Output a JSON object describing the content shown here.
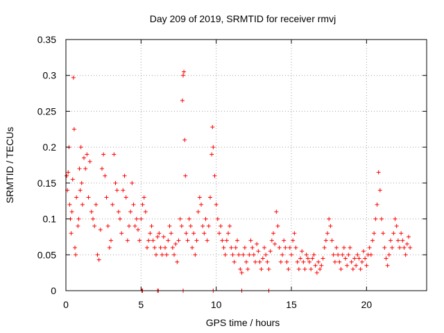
{
  "chart_data": {
    "type": "scatter",
    "title": "Day 209 of 2019, SRMTID for receiver rmvj",
    "xlabel": "GPS time / hours",
    "ylabel": "SRMTID / TECUs",
    "xlim": [
      0,
      24
    ],
    "ylim": [
      0,
      0.35
    ],
    "xticks": [
      0,
      5,
      10,
      15,
      20
    ],
    "yticks": [
      0,
      0.05,
      0.1,
      0.15,
      0.2,
      0.25,
      0.3,
      0.35
    ],
    "xtick_labels": [
      "0",
      "5",
      "10",
      "15",
      "20"
    ],
    "ytick_labels": [
      "0",
      "0.05",
      "0.1",
      "0.15",
      "0.2",
      "0.25",
      "0.3",
      "0.35"
    ],
    "grid": true,
    "marker": "+",
    "color": "#ff0000",
    "series": [
      {
        "name": "SRMTID",
        "points": [
          [
            0.05,
            0.16
          ],
          [
            0.1,
            0.14
          ],
          [
            0.15,
            0.165
          ],
          [
            0.2,
            0.2
          ],
          [
            0.25,
            0.12
          ],
          [
            0.3,
            0.1
          ],
          [
            0.35,
            0.08
          ],
          [
            0.4,
            0.11
          ],
          [
            0.45,
            0.155
          ],
          [
            0.5,
            0.297
          ],
          [
            0.55,
            0.225
          ],
          [
            0.6,
            0.06
          ],
          [
            0.65,
            0.05
          ],
          [
            0.7,
            0.13
          ],
          [
            0.8,
            0.09
          ],
          [
            0.85,
            0.1
          ],
          [
            0.9,
            0.17
          ],
          [
            0.95,
            0.14
          ],
          [
            1.0,
            0.2
          ],
          [
            1.05,
            0.15
          ],
          [
            1.1,
            0.12
          ],
          [
            1.2,
            0.185
          ],
          [
            1.3,
            0.17
          ],
          [
            1.4,
            0.19
          ],
          [
            1.5,
            0.13
          ],
          [
            1.6,
            0.18
          ],
          [
            1.7,
            0.11
          ],
          [
            1.8,
            0.1
          ],
          [
            1.9,
            0.09
          ],
          [
            2.0,
            0.12
          ],
          [
            2.1,
            0.05
          ],
          [
            2.2,
            0.043
          ],
          [
            2.3,
            0.085
          ],
          [
            2.4,
            0.17
          ],
          [
            2.5,
            0.19
          ],
          [
            2.6,
            0.16
          ],
          [
            2.7,
            0.13
          ],
          [
            2.8,
            0.09
          ],
          [
            2.9,
            0.06
          ],
          [
            3.0,
            0.07
          ],
          [
            3.1,
            0.12
          ],
          [
            3.2,
            0.19
          ],
          [
            3.3,
            0.15
          ],
          [
            3.4,
            0.14
          ],
          [
            3.5,
            0.11
          ],
          [
            3.6,
            0.1
          ],
          [
            3.7,
            0.08
          ],
          [
            3.8,
            0.14
          ],
          [
            3.9,
            0.16
          ],
          [
            4.0,
            0.13
          ],
          [
            4.1,
            0.07
          ],
          [
            4.2,
            0.09
          ],
          [
            4.3,
            0.11
          ],
          [
            4.4,
            0.15
          ],
          [
            4.5,
            0.12
          ],
          [
            4.6,
            0.09
          ],
          [
            4.7,
            0.1
          ],
          [
            4.8,
            0.085
          ],
          [
            4.9,
            0.07
          ],
          [
            5.0,
            0.1
          ],
          [
            5.1,
            0.12
          ],
          [
            5.2,
            0.13
          ],
          [
            5.3,
            0.11
          ],
          [
            5.4,
            0.06
          ],
          [
            5.5,
            0.07
          ],
          [
            5.6,
            0.08
          ],
          [
            5.7,
            0.09
          ],
          [
            5.8,
            0.07
          ],
          [
            5.9,
            0.06
          ],
          [
            6.0,
            0.05
          ],
          [
            6.1,
            0.075
          ],
          [
            6.2,
            0.08
          ],
          [
            6.3,
            0.06
          ],
          [
            6.4,
            0.05
          ],
          [
            6.5,
            0.075
          ],
          [
            6.6,
            0.06
          ],
          [
            6.7,
            0.05
          ],
          [
            6.8,
            0.07
          ],
          [
            6.9,
            0.09
          ],
          [
            7.0,
            0.08
          ],
          [
            7.1,
            0.06
          ],
          [
            7.2,
            0.05
          ],
          [
            7.3,
            0.065
          ],
          [
            7.4,
            0.04
          ],
          [
            7.5,
            0.07
          ],
          [
            7.6,
            0.1
          ],
          [
            7.7,
            0.09
          ],
          [
            7.75,
            0.265
          ],
          [
            7.8,
            0.3
          ],
          [
            7.85,
            0.305
          ],
          [
            7.9,
            0.21
          ],
          [
            7.95,
            0.16
          ],
          [
            8.0,
            0.08
          ],
          [
            8.1,
            0.07
          ],
          [
            8.2,
            0.1
          ],
          [
            8.3,
            0.09
          ],
          [
            8.4,
            0.06
          ],
          [
            8.5,
            0.08
          ],
          [
            8.6,
            0.05
          ],
          [
            8.7,
            0.07
          ],
          [
            8.8,
            0.11
          ],
          [
            8.9,
            0.13
          ],
          [
            9.0,
            0.12
          ],
          [
            9.1,
            0.09
          ],
          [
            9.2,
            0.08
          ],
          [
            9.3,
            0.1
          ],
          [
            9.4,
            0.07
          ],
          [
            9.5,
            0.09
          ],
          [
            9.6,
            0.13
          ],
          [
            9.7,
            0.19
          ],
          [
            9.75,
            0.228
          ],
          [
            9.8,
            0.2
          ],
          [
            9.9,
            0.16
          ],
          [
            10.0,
            0.12
          ],
          [
            10.1,
            0.1
          ],
          [
            10.2,
            0.08
          ],
          [
            10.3,
            0.09
          ],
          [
            10.4,
            0.07
          ],
          [
            10.5,
            0.06
          ],
          [
            10.6,
            0.05
          ],
          [
            10.7,
            0.07
          ],
          [
            10.8,
            0.08
          ],
          [
            10.9,
            0.09
          ],
          [
            11.0,
            0.06
          ],
          [
            11.1,
            0.05
          ],
          [
            11.2,
            0.04
          ],
          [
            11.3,
            0.06
          ],
          [
            11.4,
            0.07
          ],
          [
            11.5,
            0.05
          ],
          [
            11.6,
            0.03
          ],
          [
            11.7,
            0.025
          ],
          [
            11.8,
            0.05
          ],
          [
            11.9,
            0.06
          ],
          [
            12.0,
            0.04
          ],
          [
            12.1,
            0.03
          ],
          [
            12.2,
            0.05
          ],
          [
            12.3,
            0.07
          ],
          [
            12.4,
            0.06
          ],
          [
            12.5,
            0.05
          ],
          [
            12.6,
            0.04
          ],
          [
            12.7,
            0.065
          ],
          [
            12.8,
            0.055
          ],
          [
            12.9,
            0.04
          ],
          [
            13.0,
            0.03
          ],
          [
            13.1,
            0.045
          ],
          [
            13.2,
            0.06
          ],
          [
            13.3,
            0.05
          ],
          [
            13.4,
            0.04
          ],
          [
            13.5,
            0.03
          ],
          [
            13.6,
            0.055
          ],
          [
            13.7,
            0.07
          ],
          [
            13.8,
            0.08
          ],
          [
            13.9,
            0.065
          ],
          [
            14.0,
            0.11
          ],
          [
            14.1,
            0.09
          ],
          [
            14.2,
            0.06
          ],
          [
            14.3,
            0.04
          ],
          [
            14.4,
            0.05
          ],
          [
            14.5,
            0.07
          ],
          [
            14.6,
            0.06
          ],
          [
            14.7,
            0.04
          ],
          [
            14.8,
            0.03
          ],
          [
            14.9,
            0.06
          ],
          [
            15.0,
            0.05
          ],
          [
            15.1,
            0.07
          ],
          [
            15.2,
            0.08
          ],
          [
            15.3,
            0.06
          ],
          [
            15.4,
            0.04
          ],
          [
            15.5,
            0.03
          ],
          [
            15.6,
            0.045
          ],
          [
            15.7,
            0.055
          ],
          [
            15.8,
            0.04
          ],
          [
            15.9,
            0.03
          ],
          [
            16.0,
            0.05
          ],
          [
            16.1,
            0.045
          ],
          [
            16.2,
            0.04
          ],
          [
            16.3,
            0.03
          ],
          [
            16.4,
            0.045
          ],
          [
            16.5,
            0.05
          ],
          [
            16.6,
            0.035
          ],
          [
            16.7,
            0.025
          ],
          [
            16.8,
            0.04
          ],
          [
            16.9,
            0.03
          ],
          [
            17.0,
            0.035
          ],
          [
            17.1,
            0.045
          ],
          [
            17.2,
            0.06
          ],
          [
            17.3,
            0.07
          ],
          [
            17.4,
            0.08
          ],
          [
            17.5,
            0.1
          ],
          [
            17.6,
            0.09
          ],
          [
            17.7,
            0.07
          ],
          [
            17.8,
            0.05
          ],
          [
            17.9,
            0.04
          ],
          [
            18.0,
            0.06
          ],
          [
            18.1,
            0.05
          ],
          [
            18.2,
            0.04
          ],
          [
            18.3,
            0.03
          ],
          [
            18.4,
            0.05
          ],
          [
            18.5,
            0.06
          ],
          [
            18.6,
            0.045
          ],
          [
            18.7,
            0.035
          ],
          [
            18.8,
            0.05
          ],
          [
            18.9,
            0.06
          ],
          [
            19.0,
            0.04
          ],
          [
            19.1,
            0.03
          ],
          [
            19.2,
            0.045
          ],
          [
            19.3,
            0.035
          ],
          [
            19.4,
            0.05
          ],
          [
            19.5,
            0.045
          ],
          [
            19.6,
            0.03
          ],
          [
            19.7,
            0.04
          ],
          [
            19.8,
            0.055
          ],
          [
            19.9,
            0.045
          ],
          [
            20.0,
            0.035
          ],
          [
            20.1,
            0.05
          ],
          [
            20.2,
            0.06
          ],
          [
            20.3,
            0.05
          ],
          [
            20.4,
            0.07
          ],
          [
            20.5,
            0.08
          ],
          [
            20.6,
            0.1
          ],
          [
            20.7,
            0.12
          ],
          [
            20.8,
            0.165
          ],
          [
            20.9,
            0.14
          ],
          [
            21.0,
            0.1
          ],
          [
            21.1,
            0.08
          ],
          [
            21.2,
            0.06
          ],
          [
            21.3,
            0.045
          ],
          [
            21.4,
            0.035
          ],
          [
            21.5,
            0.05
          ],
          [
            21.6,
            0.07
          ],
          [
            21.7,
            0.06
          ],
          [
            21.8,
            0.08
          ],
          [
            21.9,
            0.1
          ],
          [
            22.0,
            0.09
          ],
          [
            22.1,
            0.07
          ],
          [
            22.2,
            0.06
          ],
          [
            22.3,
            0.08
          ],
          [
            22.4,
            0.07
          ],
          [
            22.5,
            0.06
          ],
          [
            22.6,
            0.05
          ],
          [
            22.7,
            0.065
          ],
          [
            22.8,
            0.075
          ],
          [
            22.9,
            0.06
          ],
          [
            5.05,
            0.0
          ],
          [
            5.1,
            0.0
          ],
          [
            6.1,
            0.0
          ],
          [
            6.15,
            0.0
          ],
          [
            7.8,
            0.0
          ],
          [
            9.8,
            0.0
          ],
          [
            11.7,
            0.0
          ],
          [
            13.5,
            0.0
          ]
        ]
      }
    ]
  }
}
